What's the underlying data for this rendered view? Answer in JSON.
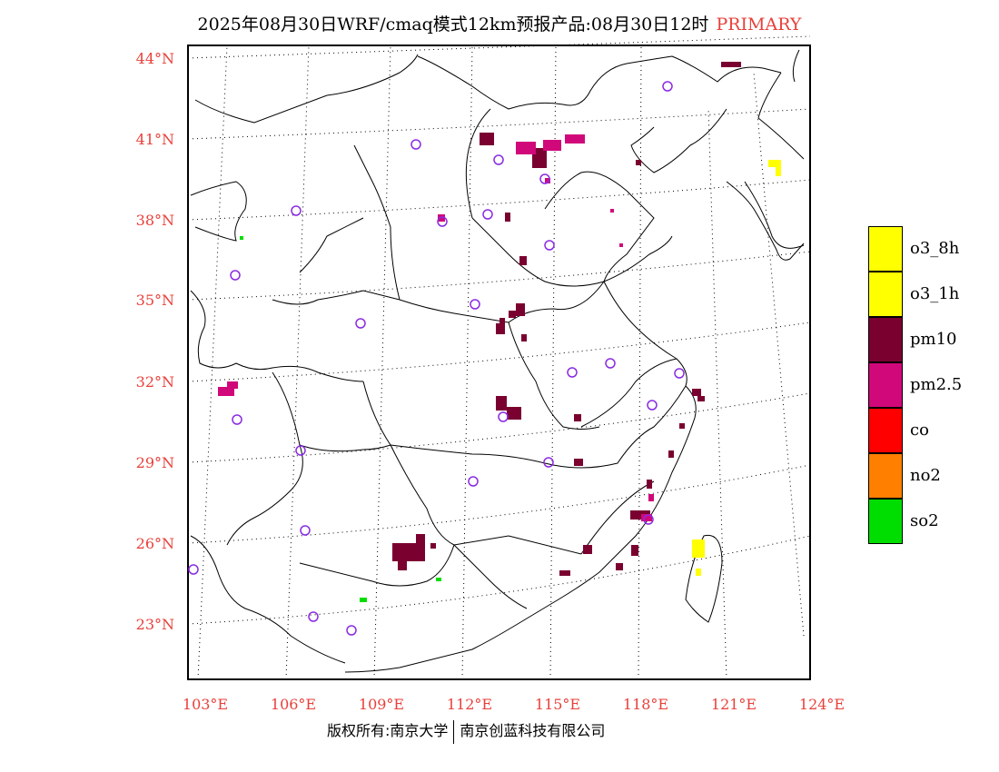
{
  "title": {
    "main": "2025年08月30日WRF/cmaq模式12km预报产品:08月30日12时",
    "tag": "PRIMARY"
  },
  "axes": {
    "lat_labels": [
      "44°N",
      "41°N",
      "38°N",
      "35°N",
      "32°N",
      "29°N",
      "26°N",
      "23°N"
    ],
    "lon_labels": [
      "103°E",
      "106°E",
      "109°E",
      "112°E",
      "115°E",
      "118°E",
      "121°E",
      "124°E"
    ]
  },
  "legend": [
    {
      "label": "o3_8h",
      "color": "#ffff00"
    },
    {
      "label": "o3_1h",
      "color": "#ffff00"
    },
    {
      "label": "pm10",
      "color": "#7a0030"
    },
    {
      "label": "pm2.5",
      "color": "#d0087a"
    },
    {
      "label": "co",
      "color": "#ff0000"
    },
    {
      "label": "no2",
      "color": "#ff7f00"
    },
    {
      "label": "so2",
      "color": "#00dd00"
    }
  ],
  "footer": {
    "left": "版权所有:南京大学",
    "right": "南京创蓝科技有限公司"
  },
  "colors": {
    "accent": "#e8403a",
    "station_marker": "#8a2be2"
  }
}
